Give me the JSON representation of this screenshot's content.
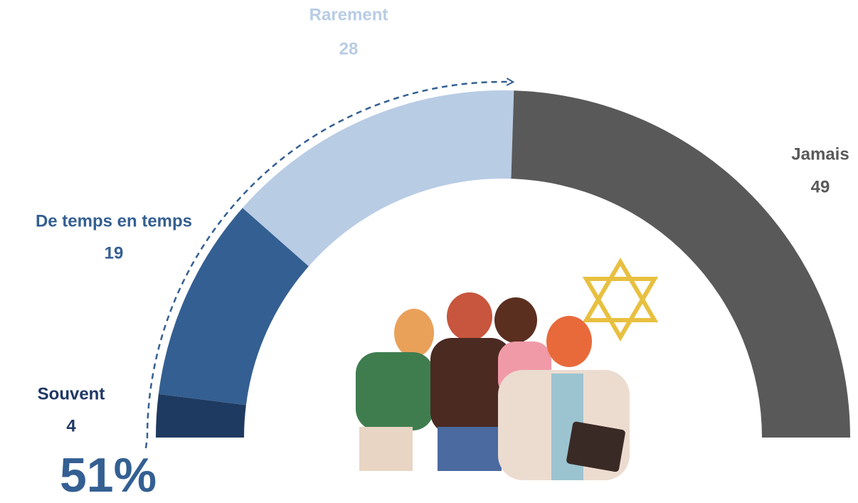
{
  "chart_data": {
    "type": "donut",
    "semicircle": true,
    "categories": [
      "Souvent",
      "De temps en temps",
      "Rarement",
      "Jamais"
    ],
    "values": [
      4,
      19,
      28,
      49
    ],
    "colors": [
      "#1f3a60",
      "#345f92",
      "#b8cce4",
      "#595959"
    ],
    "annotation": "51%"
  }
}
